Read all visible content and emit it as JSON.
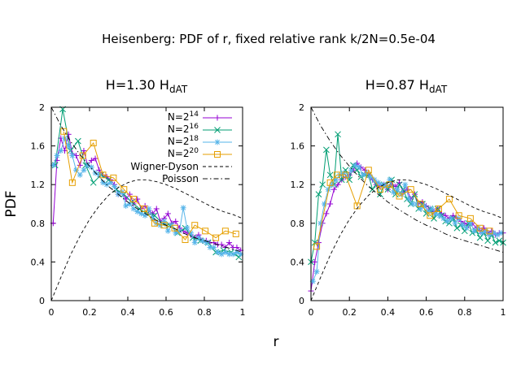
{
  "figure": {
    "title": "Heisenberg: PDF of r, fixed relative rank k/2N=0.5e-04",
    "ylabel": "PDF",
    "xlabel": "r"
  },
  "legend_labels": {
    "s14": "N=2",
    "s14_exp": "14",
    "s16": "N=2",
    "s16_exp": "16",
    "s18": "N=2",
    "s18_exp": "18",
    "s20": "N=2",
    "s20_exp": "20",
    "wd": "Wigner-Dyson",
    "poisson": "Poisson"
  },
  "colors": {
    "N=2^14": "#9400d3",
    "N=2^16": "#009e73",
    "N=2^18": "#56b4e9",
    "N=2^20": "#e69f00",
    "reference": "#000000"
  },
  "markers": {
    "N=2^14": "plus",
    "N=2^16": "cross",
    "N=2^18": "asterisk",
    "N=2^20": "open-square"
  },
  "chart_data": [
    {
      "type": "line",
      "title_main": "H=1.30 H",
      "title_sub": "dAT",
      "xlim": [
        0,
        1
      ],
      "ylim": [
        0,
        2
      ],
      "xticks": [
        "0",
        "0.2",
        "0.4",
        "0.6",
        "0.8",
        "1"
      ],
      "yticks": [
        "0",
        "0.4",
        "0.8",
        "1.2",
        "1.6",
        "2"
      ],
      "legend_position": "top-right",
      "series": [
        {
          "name": "N=2^14",
          "x": [
            0.01,
            0.03,
            0.05,
            0.07,
            0.09,
            0.11,
            0.13,
            0.15,
            0.17,
            0.19,
            0.21,
            0.23,
            0.25,
            0.27,
            0.29,
            0.31,
            0.33,
            0.35,
            0.37,
            0.39,
            0.41,
            0.43,
            0.45,
            0.47,
            0.49,
            0.51,
            0.53,
            0.55,
            0.57,
            0.59,
            0.61,
            0.63,
            0.65,
            0.67,
            0.69,
            0.71,
            0.73,
            0.75,
            0.77,
            0.79,
            0.81,
            0.83,
            0.85,
            0.87,
            0.89,
            0.91,
            0.93,
            0.95,
            0.97,
            0.99
          ],
          "y": [
            0.8,
            1.45,
            1.68,
            1.55,
            1.72,
            1.52,
            1.5,
            1.4,
            1.55,
            1.4,
            1.45,
            1.47,
            1.35,
            1.3,
            1.28,
            1.25,
            1.2,
            1.1,
            1.12,
            1.05,
            1.1,
            1.0,
            1.05,
            0.95,
            0.98,
            0.93,
            0.9,
            0.95,
            0.82,
            0.85,
            0.9,
            0.8,
            0.82,
            0.75,
            0.72,
            0.7,
            0.68,
            0.65,
            0.68,
            0.62,
            0.62,
            0.6,
            0.6,
            0.58,
            0.58,
            0.55,
            0.6,
            0.55,
            0.55,
            0.52
          ]
        },
        {
          "name": "N=2^16",
          "x": [
            0.02,
            0.06,
            0.1,
            0.14,
            0.18,
            0.22,
            0.26,
            0.3,
            0.34,
            0.38,
            0.42,
            0.46,
            0.5,
            0.54,
            0.58,
            0.62,
            0.66,
            0.7,
            0.74,
            0.78,
            0.82,
            0.86,
            0.9,
            0.94,
            0.98
          ],
          "y": [
            1.4,
            1.98,
            1.55,
            1.65,
            1.4,
            1.22,
            1.3,
            1.25,
            1.15,
            1.1,
            1.02,
            0.95,
            0.9,
            0.88,
            0.8,
            0.78,
            0.7,
            0.75,
            0.65,
            0.62,
            0.6,
            0.5,
            0.52,
            0.5,
            0.45
          ]
        },
        {
          "name": "N=2^18",
          "x": [
            0.01,
            0.03,
            0.05,
            0.07,
            0.09,
            0.11,
            0.13,
            0.15,
            0.17,
            0.19,
            0.21,
            0.23,
            0.25,
            0.27,
            0.29,
            0.31,
            0.33,
            0.35,
            0.37,
            0.39,
            0.41,
            0.43,
            0.45,
            0.47,
            0.49,
            0.51,
            0.53,
            0.55,
            0.57,
            0.59,
            0.61,
            0.63,
            0.65,
            0.67,
            0.69,
            0.71,
            0.73,
            0.75,
            0.77,
            0.79,
            0.81,
            0.83,
            0.85,
            0.87,
            0.89,
            0.91,
            0.93,
            0.95,
            0.97,
            0.99
          ],
          "y": [
            1.4,
            1.5,
            1.55,
            1.68,
            1.6,
            1.5,
            1.35,
            1.3,
            1.35,
            1.4,
            1.38,
            1.32,
            1.3,
            1.22,
            1.2,
            1.22,
            1.18,
            1.1,
            1.12,
            0.98,
            1.0,
            0.95,
            0.92,
            0.9,
            0.88,
            0.95,
            0.85,
            0.8,
            0.78,
            0.82,
            0.72,
            0.78,
            0.7,
            0.72,
            0.96,
            0.75,
            0.7,
            0.6,
            0.65,
            0.62,
            0.6,
            0.55,
            0.55,
            0.5,
            0.48,
            0.5,
            0.48,
            0.48,
            0.5,
            0.48
          ]
        },
        {
          "name": "N=2^20",
          "x": [
            0.065,
            0.11,
            0.165,
            0.22,
            0.27,
            0.325,
            0.38,
            0.43,
            0.485,
            0.54,
            0.59,
            0.645,
            0.7,
            0.75,
            0.805,
            0.86,
            0.91,
            0.965
          ],
          "y": [
            1.75,
            1.22,
            1.5,
            1.63,
            1.3,
            1.27,
            1.15,
            1.05,
            0.95,
            0.8,
            0.78,
            0.75,
            0.63,
            0.78,
            0.72,
            0.65,
            0.72,
            0.69
          ]
        },
        {
          "name": "Wigner-Dyson",
          "x": [
            0,
            0.05,
            0.1,
            0.15,
            0.2,
            0.25,
            0.3,
            0.35,
            0.4,
            0.45,
            0.5,
            0.55,
            0.6,
            0.65,
            0.7,
            0.75,
            0.8,
            0.85,
            0.9,
            0.95,
            1.0
          ],
          "y": [
            0,
            0.24,
            0.47,
            0.67,
            0.84,
            0.98,
            1.09,
            1.17,
            1.22,
            1.25,
            1.25,
            1.23,
            1.2,
            1.16,
            1.11,
            1.06,
            1.01,
            0.96,
            0.92,
            0.89,
            0.85
          ]
        },
        {
          "name": "Poisson",
          "x": [
            0,
            0.05,
            0.1,
            0.15,
            0.2,
            0.25,
            0.3,
            0.35,
            0.4,
            0.45,
            0.5,
            0.55,
            0.6,
            0.65,
            0.7,
            0.75,
            0.8,
            0.85,
            0.9,
            0.95,
            1.0
          ],
          "y": [
            2.0,
            1.81,
            1.65,
            1.51,
            1.39,
            1.28,
            1.18,
            1.1,
            1.02,
            0.95,
            0.89,
            0.83,
            0.78,
            0.74,
            0.69,
            0.65,
            0.62,
            0.59,
            0.56,
            0.53,
            0.5
          ]
        }
      ]
    },
    {
      "type": "line",
      "title_main": "H=0.87 H",
      "title_sub": "dAT",
      "xlim": [
        0,
        1
      ],
      "ylim": [
        0,
        2
      ],
      "xticks": [
        "0",
        "0.2",
        "0.4",
        "0.6",
        "0.8",
        "1"
      ],
      "yticks": [
        "0",
        "0.4",
        "0.8",
        "1.2",
        "1.6",
        "2"
      ],
      "series": [
        {
          "name": "N=2^14",
          "x": [
            0.0,
            0.02,
            0.04,
            0.06,
            0.08,
            0.1,
            0.12,
            0.14,
            0.16,
            0.18,
            0.2,
            0.22,
            0.24,
            0.26,
            0.28,
            0.3,
            0.32,
            0.34,
            0.36,
            0.38,
            0.4,
            0.42,
            0.44,
            0.46,
            0.48,
            0.5,
            0.52,
            0.54,
            0.56,
            0.58,
            0.6,
            0.62,
            0.64,
            0.66,
            0.68,
            0.7,
            0.72,
            0.74,
            0.76,
            0.78,
            0.8,
            0.82,
            0.84,
            0.86,
            0.88,
            0.9,
            0.92,
            0.94,
            0.96,
            0.98,
            1.0
          ],
          "y": [
            0.1,
            0.4,
            0.6,
            0.8,
            0.9,
            1.0,
            1.15,
            1.2,
            1.25,
            1.28,
            1.3,
            1.35,
            1.42,
            1.38,
            1.35,
            1.3,
            1.25,
            1.2,
            1.18,
            1.2,
            1.15,
            1.2,
            1.18,
            1.22,
            1.12,
            1.15,
            1.05,
            1.1,
            1.0,
            1.02,
            0.98,
            0.95,
            0.92,
            0.95,
            0.9,
            0.88,
            0.85,
            0.88,
            0.85,
            0.82,
            0.8,
            0.78,
            0.8,
            0.75,
            0.72,
            0.75,
            0.7,
            0.72,
            0.68,
            0.7,
            0.7
          ]
        },
        {
          "name": "N=2^16",
          "x": [
            0.0,
            0.02,
            0.04,
            0.06,
            0.08,
            0.1,
            0.12,
            0.14,
            0.16,
            0.18,
            0.2,
            0.22,
            0.24,
            0.26,
            0.28,
            0.3,
            0.32,
            0.34,
            0.36,
            0.38,
            0.4,
            0.42,
            0.44,
            0.46,
            0.48,
            0.5,
            0.52,
            0.54,
            0.56,
            0.58,
            0.6,
            0.62,
            0.64,
            0.66,
            0.68,
            0.7,
            0.72,
            0.74,
            0.76,
            0.78,
            0.8,
            0.82,
            0.84,
            0.86,
            0.88,
            0.9,
            0.92,
            0.94,
            0.96,
            0.98,
            1.0
          ],
          "y": [
            0.4,
            0.6,
            1.1,
            1.2,
            1.56,
            1.3,
            1.2,
            1.72,
            1.25,
            1.35,
            1.25,
            1.4,
            1.35,
            1.28,
            1.3,
            1.3,
            1.15,
            1.2,
            1.1,
            1.2,
            1.15,
            1.25,
            1.1,
            1.2,
            1.15,
            1.05,
            1.0,
            1.1,
            0.95,
            1.0,
            0.9,
            0.95,
            0.85,
            0.95,
            0.88,
            0.82,
            0.8,
            0.85,
            0.75,
            0.78,
            0.72,
            0.8,
            0.7,
            0.72,
            0.65,
            0.7,
            0.62,
            0.68,
            0.6,
            0.62,
            0.6
          ]
        },
        {
          "name": "N=2^18",
          "x": [
            0.01,
            0.03,
            0.05,
            0.07,
            0.09,
            0.11,
            0.13,
            0.15,
            0.17,
            0.19,
            0.21,
            0.23,
            0.25,
            0.27,
            0.29,
            0.31,
            0.33,
            0.35,
            0.37,
            0.39,
            0.41,
            0.43,
            0.45,
            0.47,
            0.49,
            0.51,
            0.53,
            0.55,
            0.57,
            0.59,
            0.61,
            0.63,
            0.65,
            0.67,
            0.69,
            0.71,
            0.73,
            0.75,
            0.77,
            0.79,
            0.81,
            0.83,
            0.85,
            0.87,
            0.89,
            0.91,
            0.93,
            0.95,
            0.97,
            0.99
          ],
          "y": [
            0.2,
            0.3,
            0.8,
            1.0,
            1.15,
            1.2,
            1.25,
            1.3,
            1.32,
            1.28,
            1.35,
            1.4,
            1.38,
            1.3,
            1.32,
            1.28,
            1.25,
            1.22,
            1.2,
            1.18,
            1.25,
            1.12,
            1.15,
            1.1,
            1.2,
            1.05,
            1.0,
            1.0,
            0.95,
            0.98,
            0.92,
            0.95,
            0.9,
            0.88,
            0.85,
            0.82,
            0.85,
            0.8,
            0.85,
            0.78,
            0.75,
            0.8,
            0.72,
            0.75,
            0.7,
            0.72,
            0.68,
            0.7,
            0.68,
            0.7
          ]
        },
        {
          "name": "N=2^20",
          "x": [
            0.03,
            0.1,
            0.135,
            0.18,
            0.24,
            0.3,
            0.36,
            0.41,
            0.46,
            0.52,
            0.57,
            0.62,
            0.665,
            0.72,
            0.77,
            0.83,
            0.88,
            0.93
          ],
          "y": [
            0.56,
            1.22,
            1.3,
            1.3,
            0.98,
            1.35,
            1.15,
            1.2,
            1.08,
            1.15,
            1.0,
            0.88,
            0.95,
            1.05,
            0.88,
            0.85,
            0.75,
            0.72
          ]
        },
        {
          "name": "Wigner-Dyson",
          "x": [
            0,
            0.05,
            0.1,
            0.15,
            0.2,
            0.25,
            0.3,
            0.35,
            0.4,
            0.45,
            0.5,
            0.55,
            0.6,
            0.65,
            0.7,
            0.75,
            0.8,
            0.85,
            0.9,
            0.95,
            1.0
          ],
          "y": [
            0,
            0.24,
            0.47,
            0.67,
            0.84,
            0.98,
            1.09,
            1.17,
            1.22,
            1.25,
            1.25,
            1.23,
            1.2,
            1.16,
            1.11,
            1.06,
            1.01,
            0.96,
            0.92,
            0.89,
            0.85
          ]
        },
        {
          "name": "Poisson",
          "x": [
            0,
            0.05,
            0.1,
            0.15,
            0.2,
            0.25,
            0.3,
            0.35,
            0.4,
            0.45,
            0.5,
            0.55,
            0.6,
            0.65,
            0.7,
            0.75,
            0.8,
            0.85,
            0.9,
            0.95,
            1.0
          ],
          "y": [
            2.0,
            1.81,
            1.65,
            1.51,
            1.39,
            1.28,
            1.18,
            1.1,
            1.02,
            0.95,
            0.89,
            0.83,
            0.78,
            0.74,
            0.69,
            0.65,
            0.62,
            0.59,
            0.56,
            0.53,
            0.5
          ]
        }
      ]
    }
  ]
}
